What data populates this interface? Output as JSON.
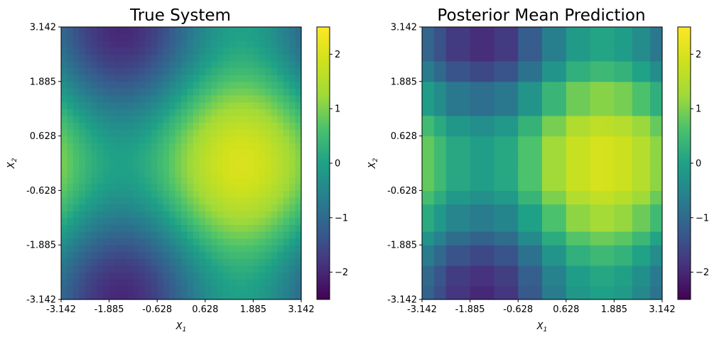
{
  "chart_data": [
    {
      "type": "heatmap",
      "title": "True System",
      "xlabel": "X_1",
      "ylabel": "X_2",
      "xlim": [
        -3.142,
        3.142
      ],
      "ylim": [
        -3.142,
        3.142
      ],
      "x_ticks": [
        "-3.142",
        "-1.885",
        "-0.628",
        "0.628",
        "1.885",
        "3.142"
      ],
      "y_ticks": [
        "-3.142",
        "-1.885",
        "-0.628",
        "0.628",
        "1.885",
        "3.142"
      ],
      "colormap": "viridis",
      "grid_resolution": 40,
      "function": "sin(x1) + cos(x2)",
      "colorbar": {
        "range": [
          -2.5,
          2.5
        ],
        "ticks": [
          "−2",
          "−1",
          "0",
          "1",
          "2"
        ]
      }
    },
    {
      "type": "heatmap",
      "title": "Posterior Mean Prediction",
      "xlabel": "X_1",
      "ylabel": "X_2",
      "xlim": [
        -3.142,
        3.142
      ],
      "ylim": [
        -3.142,
        3.142
      ],
      "x_ticks": [
        "-3.142",
        "-1.885",
        "-0.628",
        "0.628",
        "1.885",
        "3.142"
      ],
      "y_ticks": [
        "-3.142",
        "-1.885",
        "-0.628",
        "0.628",
        "1.885",
        "3.142"
      ],
      "colormap": "viridis",
      "grid_resolution": 40,
      "x_bins": [
        -3.142,
        -2.85,
        -2.45,
        -1.885,
        -1.3,
        -0.628,
        0.0,
        0.628,
        1.25,
        1.6,
        1.9,
        2.3,
        2.8,
        3.142
      ],
      "y_bins": [
        -3.142,
        -2.9,
        -2.4,
        -1.885,
        -1.5,
        -1.0,
        -0.628,
        0.0,
        0.628,
        1.1,
        1.885,
        2.4,
        3.142
      ],
      "colorbar": {
        "range": [
          -2.5,
          2.5
        ],
        "ticks": [
          "−2",
          "−1",
          "0",
          "1",
          "2"
        ]
      }
    }
  ]
}
